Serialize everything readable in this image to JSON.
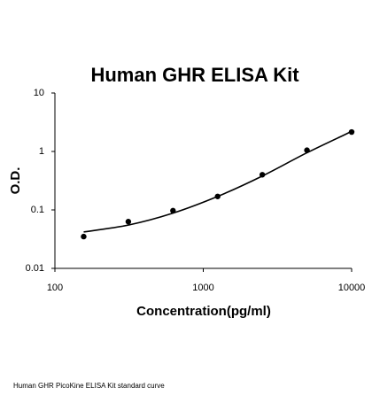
{
  "chart_data": {
    "type": "scatter",
    "title": "Human GHR ELISA Kit",
    "x_label": "Concentration(pg/ml)",
    "y_label": "O.D.",
    "x": [
      156.25,
      312.5,
      625,
      1250,
      2500,
      5000,
      10000
    ],
    "values": [
      0.035,
      0.063,
      0.097,
      0.17,
      0.4,
      1.05,
      2.15
    ],
    "color": "#000000",
    "curve": {
      "x": [
        156.25,
        312.5,
        625,
        1250,
        2500,
        5000,
        10000
      ],
      "values": [
        0.042,
        0.055,
        0.088,
        0.17,
        0.38,
        0.95,
        2.2
      ]
    },
    "xscale": "log",
    "yscale": "log",
    "xlim": [
      100,
      10000
    ],
    "ylim": [
      0.01,
      10
    ],
    "xticks": [
      100,
      1000,
      10000
    ],
    "yticks": [
      0.01,
      0.1,
      1,
      10
    ]
  },
  "caption": "Human GHR PicoKine ELISA Kit standard curve"
}
